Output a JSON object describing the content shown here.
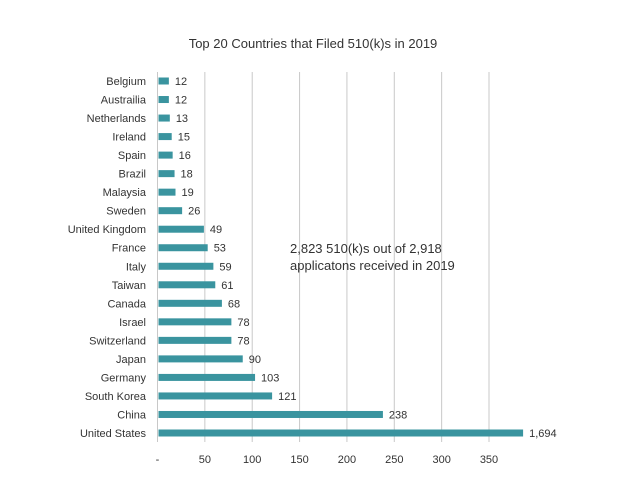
{
  "chart_data": {
    "type": "bar",
    "orientation": "horizontal",
    "title": "Top 20 Countries that Filed 510(k)s in 2019",
    "annotation": [
      "2,823 510(k)s out of 2,918",
      "applicatons received in 2019"
    ],
    "categories": [
      "Belgium",
      "Austrailia",
      "Netherlands",
      "Ireland",
      "Spain",
      "Brazil",
      "Malaysia",
      "Sweden",
      "United Kingdom",
      "France",
      "Italy",
      "Taiwan",
      "Canada",
      "Israel",
      "Switzerland",
      "Japan",
      "Germany",
      "South Korea",
      "China",
      "United States"
    ],
    "values": [
      12,
      12,
      13,
      15,
      16,
      18,
      19,
      26,
      49,
      53,
      59,
      61,
      68,
      78,
      78,
      90,
      103,
      121,
      238,
      1694
    ],
    "data_labels": [
      "12",
      "12",
      "13",
      "15",
      "16",
      "18",
      "19",
      "26",
      "49",
      "53",
      "59",
      "61",
      "68",
      "78",
      "78",
      "90",
      "103",
      "121",
      "238",
      "1,694"
    ],
    "xticks": [
      0,
      50,
      100,
      150,
      200,
      250,
      300,
      350
    ],
    "xtick_labels": [
      "-",
      "50",
      "100",
      "150",
      "200",
      "250",
      "300",
      "350"
    ],
    "xlim": [
      0,
      386
    ],
    "xlabel": "",
    "ylabel": "",
    "grid": "vertical",
    "legend": "none",
    "colors": {
      "bar": "#3a949f",
      "grid": "#c8c8c8",
      "text": "#333333"
    }
  }
}
